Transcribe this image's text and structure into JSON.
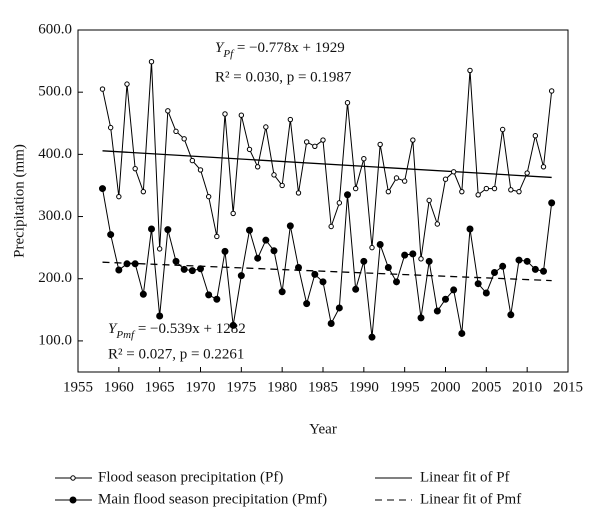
{
  "chart_data": {
    "type": "line",
    "xlabel": "Year",
    "ylabel": "Precipitation (mm)",
    "xlim": [
      1955,
      2015
    ],
    "xticks": [
      1955,
      1960,
      1965,
      1970,
      1975,
      1980,
      1985,
      1990,
      1995,
      2000,
      2005,
      2010,
      2015
    ],
    "ylim": [
      50,
      600
    ],
    "yticks": [
      {
        "value": 100,
        "label": "100.0"
      },
      {
        "value": 200,
        "label": "200.0"
      },
      {
        "value": 300,
        "label": "300.0"
      },
      {
        "value": 400,
        "label": "400.0"
      },
      {
        "value": 500,
        "label": "500.0"
      },
      {
        "value": 600,
        "label": "600.0"
      }
    ],
    "x": [
      1958,
      1959,
      1960,
      1961,
      1962,
      1963,
      1964,
      1965,
      1966,
      1967,
      1968,
      1969,
      1970,
      1971,
      1972,
      1973,
      1974,
      1975,
      1976,
      1977,
      1978,
      1979,
      1980,
      1981,
      1982,
      1983,
      1984,
      1985,
      1986,
      1987,
      1988,
      1989,
      1990,
      1991,
      1992,
      1993,
      1994,
      1995,
      1996,
      1997,
      1998,
      1999,
      2000,
      2001,
      2002,
      2003,
      2004,
      2005,
      2006,
      2007,
      2008,
      2009,
      2010,
      2011,
      2012,
      2013
    ],
    "series": [
      {
        "name": "Flood season precipitation (Pf)",
        "color": "#000000",
        "marker": "open",
        "values": [
          505,
          443,
          332,
          513,
          377,
          340,
          549,
          248,
          470,
          437,
          425,
          390,
          375,
          332,
          268,
          465,
          305,
          463,
          408,
          380,
          444,
          367,
          350,
          456,
          338,
          420,
          413,
          423,
          284,
          322,
          483,
          345,
          393,
          250,
          416,
          340,
          362,
          357,
          423,
          232,
          326,
          288,
          360,
          372,
          340,
          535,
          335,
          345,
          345,
          440,
          343,
          340,
          370,
          430,
          380,
          502
        ]
      },
      {
        "name": "Main flood season precipitation (Pmf)",
        "color": "#000000",
        "marker": "filled",
        "values": [
          345,
          271,
          214,
          224,
          224,
          175,
          280,
          140,
          279,
          228,
          215,
          213,
          216,
          174,
          167,
          244,
          125,
          205,
          278,
          233,
          262,
          245,
          179,
          285,
          218,
          160,
          207,
          195,
          128,
          153,
          335,
          183,
          228,
          106,
          255,
          218,
          195,
          238,
          240,
          137,
          228,
          148,
          167,
          182,
          112,
          280,
          192,
          177,
          210,
          220,
          142,
          230,
          228,
          215,
          212,
          322
        ]
      }
    ],
    "fits": [
      {
        "name": "Linear fit of Pf",
        "color": "#000000",
        "dash": "none",
        "x": [
          1958,
          2013
        ],
        "values": [
          405.7,
          362.9
        ]
      },
      {
        "name": "Linear fit of Pmf",
        "color": "#000000",
        "dash": "7 5",
        "x": [
          1958,
          2013
        ],
        "values": [
          226.6,
          197.0
        ]
      }
    ],
    "annotations": [
      {
        "symbol": "Y",
        "subscript": "Pf",
        "equation": " = −0.778x + 1929",
        "stats": "R² = 0.030, p = 0.1987"
      },
      {
        "symbol": "Y",
        "subscript": "Pmf",
        "equation": " = −0.539x + 1282",
        "stats": "R² = 0.027, p = 0.2261"
      }
    ]
  }
}
